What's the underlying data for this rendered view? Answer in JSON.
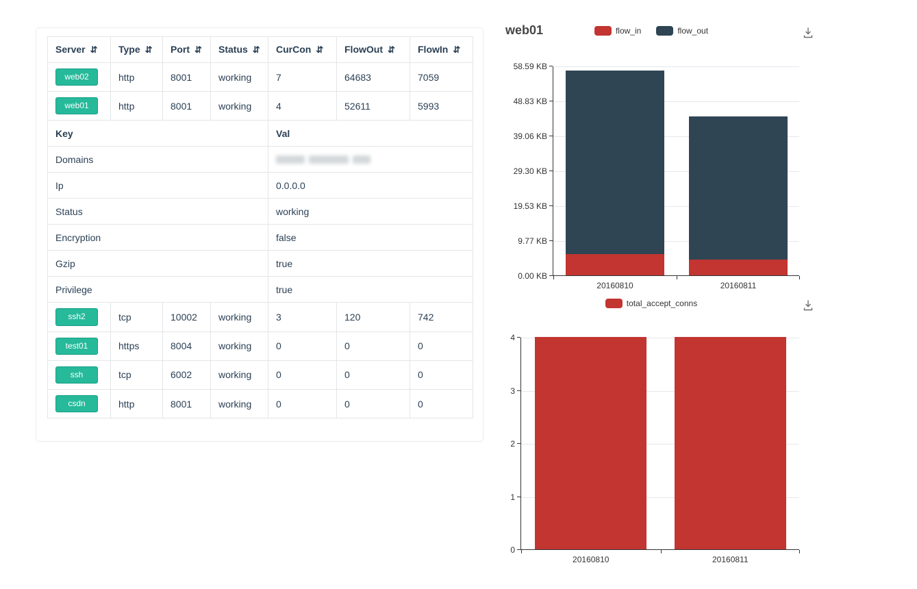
{
  "colors": {
    "accent_green": "#26b99a",
    "chart_red": "#c23531",
    "chart_dark": "#2f4554",
    "grid_line": "#e4e7ec"
  },
  "icons": {
    "sort": "⇵",
    "download": "download-icon"
  },
  "table": {
    "columns": [
      "Server",
      "Type",
      "Port",
      "Status",
      "CurCon",
      "FlowOut",
      "FlowIn"
    ],
    "top_rows": [
      {
        "server": "web02",
        "type": "http",
        "port": "8001",
        "status": "working",
        "curcon": "7",
        "flowout": "64683",
        "flowin": "7059"
      },
      {
        "server": "web01",
        "type": "http",
        "port": "8001",
        "status": "working",
        "curcon": "4",
        "flowout": "52611",
        "flowin": "5993"
      }
    ],
    "detail": {
      "key_header": "Key",
      "val_header": "Val",
      "rows": [
        {
          "key": "Domains",
          "val": "",
          "redacted": true
        },
        {
          "key": "Ip",
          "val": "0.0.0.0"
        },
        {
          "key": "Status",
          "val": "working"
        },
        {
          "key": "Encryption",
          "val": "false"
        },
        {
          "key": "Gzip",
          "val": "true"
        },
        {
          "key": "Privilege",
          "val": "true"
        }
      ]
    },
    "bottom_rows": [
      {
        "server": "ssh2",
        "type": "tcp",
        "port": "10002",
        "status": "working",
        "curcon": "3",
        "flowout": "120",
        "flowin": "742"
      },
      {
        "server": "test01",
        "type": "https",
        "port": "8004",
        "status": "working",
        "curcon": "0",
        "flowout": "0",
        "flowin": "0"
      },
      {
        "server": "ssh",
        "type": "tcp",
        "port": "6002",
        "status": "working",
        "curcon": "0",
        "flowout": "0",
        "flowin": "0"
      },
      {
        "server": "csdn",
        "type": "http",
        "port": "8001",
        "status": "working",
        "curcon": "0",
        "flowout": "0",
        "flowin": "0"
      }
    ]
  },
  "chart_data": [
    {
      "type": "bar",
      "stacked": true,
      "title": "web01",
      "categories": [
        "20160810",
        "20160811"
      ],
      "series": [
        {
          "name": "flow_in",
          "color": "#c23531",
          "values": [
            5.85,
            4.5
          ]
        },
        {
          "name": "flow_out",
          "color": "#2f4554",
          "values": [
            51.38,
            39.9
          ]
        }
      ],
      "y_unit": "KB",
      "ylim": [
        0,
        58.59
      ],
      "yticks": [
        "0.00 KB",
        "9.77 KB",
        "19.53 KB",
        "29.30 KB",
        "39.06 KB",
        "48.83 KB",
        "58.59 KB"
      ],
      "xlabel": "",
      "ylabel": "",
      "grid": true,
      "legend_position": "top-center"
    },
    {
      "type": "bar",
      "stacked": false,
      "title": "",
      "categories": [
        "20160810",
        "20160811"
      ],
      "series": [
        {
          "name": "total_accept_conns",
          "color": "#c23531",
          "values": [
            4,
            4
          ]
        }
      ],
      "y_unit": "",
      "ylim": [
        0,
        4
      ],
      "yticks": [
        "0",
        "1",
        "2",
        "3",
        "4"
      ],
      "xlabel": "",
      "ylabel": "",
      "grid": true,
      "legend_position": "top-center"
    }
  ]
}
